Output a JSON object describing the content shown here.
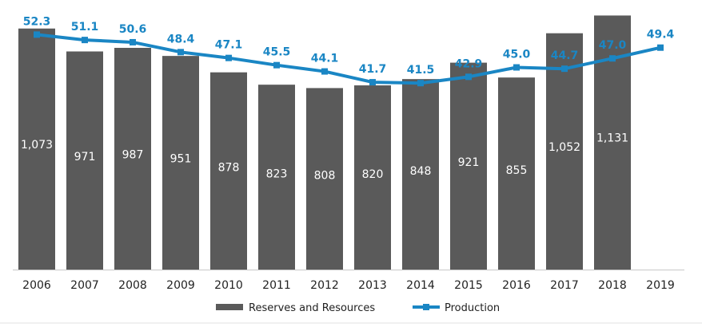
{
  "chart_data": {
    "type": "bar",
    "title": "",
    "xlabel": "",
    "ylabel": "",
    "categories": [
      "2006",
      "2007",
      "2008",
      "2009",
      "2010",
      "2011",
      "2012",
      "2013",
      "2014",
      "2015",
      "2016",
      "2017",
      "2018",
      "2019"
    ],
    "series": [
      {
        "name": "Reserves and Resources",
        "type": "bar",
        "values": [
          1073,
          971,
          987,
          951,
          878,
          823,
          808,
          820,
          848,
          921,
          855,
          1052,
          1131,
          null
        ],
        "labels": [
          "1,073",
          "971",
          "987",
          "951",
          "878",
          "823",
          "808",
          "820",
          "848",
          "921",
          "855",
          "1,052",
          "1,131",
          ""
        ],
        "ylim": [
          0,
          1200
        ]
      },
      {
        "name": "Production",
        "type": "line",
        "values": [
          52.3,
          51.1,
          50.6,
          48.4,
          47.1,
          45.5,
          44.1,
          41.7,
          41.5,
          42.9,
          45.0,
          44.7,
          47.0,
          49.4
        ],
        "labels": [
          "52.3",
          "51.1",
          "50.6",
          "48.4",
          "47.1",
          "45.5",
          "44.1",
          "41.7",
          "41.5",
          "42.9",
          "45.0",
          "44.7",
          "47.0",
          "49.4"
        ],
        "ylim": [
          0,
          60
        ]
      }
    ],
    "legend": {
      "position": "bottom",
      "items": [
        "Reserves and Resources",
        "Production"
      ]
    },
    "colors": {
      "bar": "#5a5a5a",
      "line": "#1a86c4",
      "axis": "#c8c8c8"
    }
  }
}
